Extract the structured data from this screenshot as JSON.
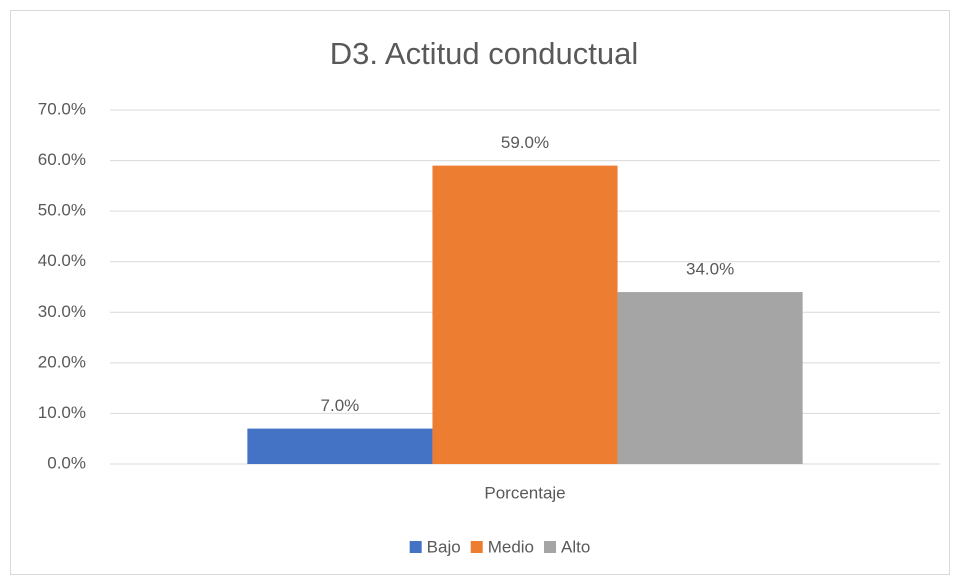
{
  "chart_data": {
    "type": "bar",
    "title": "D3. Actitud conductual",
    "categories": [
      "Porcentaje"
    ],
    "series": [
      {
        "name": "Bajo",
        "color": "#4472c4",
        "values": [
          7
        ],
        "value_labels": [
          "7.0%"
        ]
      },
      {
        "name": "Medio",
        "color": "#ed7d31",
        "values": [
          59
        ],
        "value_labels": [
          "59.0%"
        ]
      },
      {
        "name": "Alto",
        "color": "#a5a5a5",
        "values": [
          34
        ],
        "value_labels": [
          "34.0%"
        ]
      }
    ],
    "ylim": [
      0,
      70
    ],
    "yticks": [
      {
        "value": 0,
        "label": "0.0%"
      },
      {
        "value": 10,
        "label": "10.0%"
      },
      {
        "value": 20,
        "label": "20.0%"
      },
      {
        "value": 30,
        "label": "30.0%"
      },
      {
        "value": 40,
        "label": "40.0%"
      },
      {
        "value": 50,
        "label": "50.0%"
      },
      {
        "value": 60,
        "label": "60.0%"
      },
      {
        "value": 70,
        "label": "70.0%"
      }
    ],
    "grid": true,
    "legend": "bottom"
  }
}
